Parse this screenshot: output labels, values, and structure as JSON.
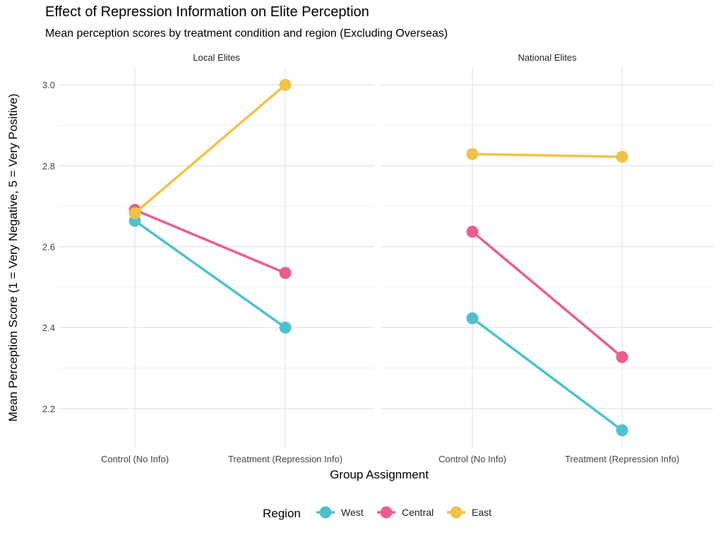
{
  "chart_data": {
    "type": "line",
    "title": "Effect of Repression Information on Elite Perception",
    "subtitle": "Mean perception scores by treatment condition and region (Excluding Overseas)",
    "xlabel": "Group Assignment",
    "ylabel": "Mean Perception Score (1 = Very Negative, 5 = Very Positive)",
    "categories": [
      "Control (No Info)",
      "Treatment (Repression Info)"
    ],
    "ylim": [
      2.102,
      3.044
    ],
    "yticks": [
      2.2,
      2.4,
      2.6,
      2.8,
      3.0
    ],
    "ytick_labels": [
      "2.2",
      "2.4",
      "2.6",
      "2.8",
      "3.0"
    ],
    "grid": true,
    "legend": {
      "title": "Region",
      "placement": "bottom"
    },
    "panels": [
      {
        "title": "Local Elites",
        "series": [
          {
            "name": "West",
            "color": "#4fc1cd",
            "values": [
              2.664,
              2.4
            ]
          },
          {
            "name": "Central",
            "color": "#e8608a",
            "values": [
              2.691,
              2.535
            ]
          },
          {
            "name": "East",
            "color": "#f0c24a",
            "values": [
              2.683,
              3.0
            ]
          }
        ]
      },
      {
        "title": "National Elites",
        "series": [
          {
            "name": "West",
            "color": "#4fc1cd",
            "values": [
              2.423,
              2.146
            ]
          },
          {
            "name": "Central",
            "color": "#e8608a",
            "values": [
              2.637,
              2.327
            ]
          },
          {
            "name": "East",
            "color": "#f0c24a",
            "values": [
              2.829,
              2.822
            ]
          }
        ]
      }
    ]
  }
}
